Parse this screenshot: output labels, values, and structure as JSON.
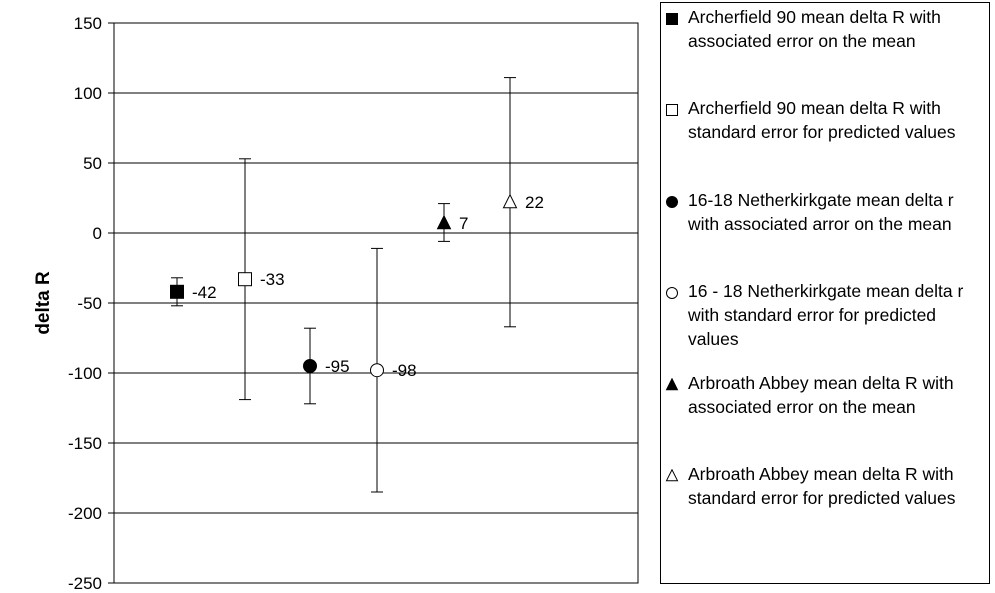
{
  "chart_data": {
    "type": "scatter",
    "title": "",
    "xlabel": "",
    "ylabel": "delta R",
    "ylim": [
      -250,
      150
    ],
    "ytick_step": 50,
    "yticks": [
      "150",
      "100",
      "50",
      "0",
      "-50",
      "-100",
      "-150",
      "-200",
      "-250"
    ],
    "grid": true,
    "legend_position": "right",
    "series": [
      {
        "name": "Archerfield 90 mean delta R with associated error on the mean",
        "marker": "square-filled",
        "value": -42,
        "label": "-42",
        "err_low": -52,
        "err_high": -32
      },
      {
        "name": "Archerfield 90 mean delta R with standard error for predicted values",
        "marker": "square-open",
        "value": -33,
        "label": "-33",
        "err_low": -119,
        "err_high": 53
      },
      {
        "name": "16-18  Netherkirkgate mean delta r with associated arror on the mean",
        "marker": "circle-filled",
        "value": -95,
        "label": "-95",
        "err_low": -122,
        "err_high": -68
      },
      {
        "name": "16 - 18 Netherkirkgate mean delta r with standard error for predicted values",
        "marker": "circle-open",
        "value": -98,
        "label": "-98",
        "err_low": -185,
        "err_high": -11
      },
      {
        "name": "Arbroath Abbey mean delta R with associated error on the mean",
        "marker": "triangle-filled",
        "value": 7,
        "label": "7",
        "err_low": -6,
        "err_high": 21
      },
      {
        "name": "Arbroath Abbey mean delta R with standard error for predicted values",
        "marker": "triangle-open",
        "value": 22,
        "label": "22",
        "err_low": -67,
        "err_high": 111
      }
    ]
  }
}
